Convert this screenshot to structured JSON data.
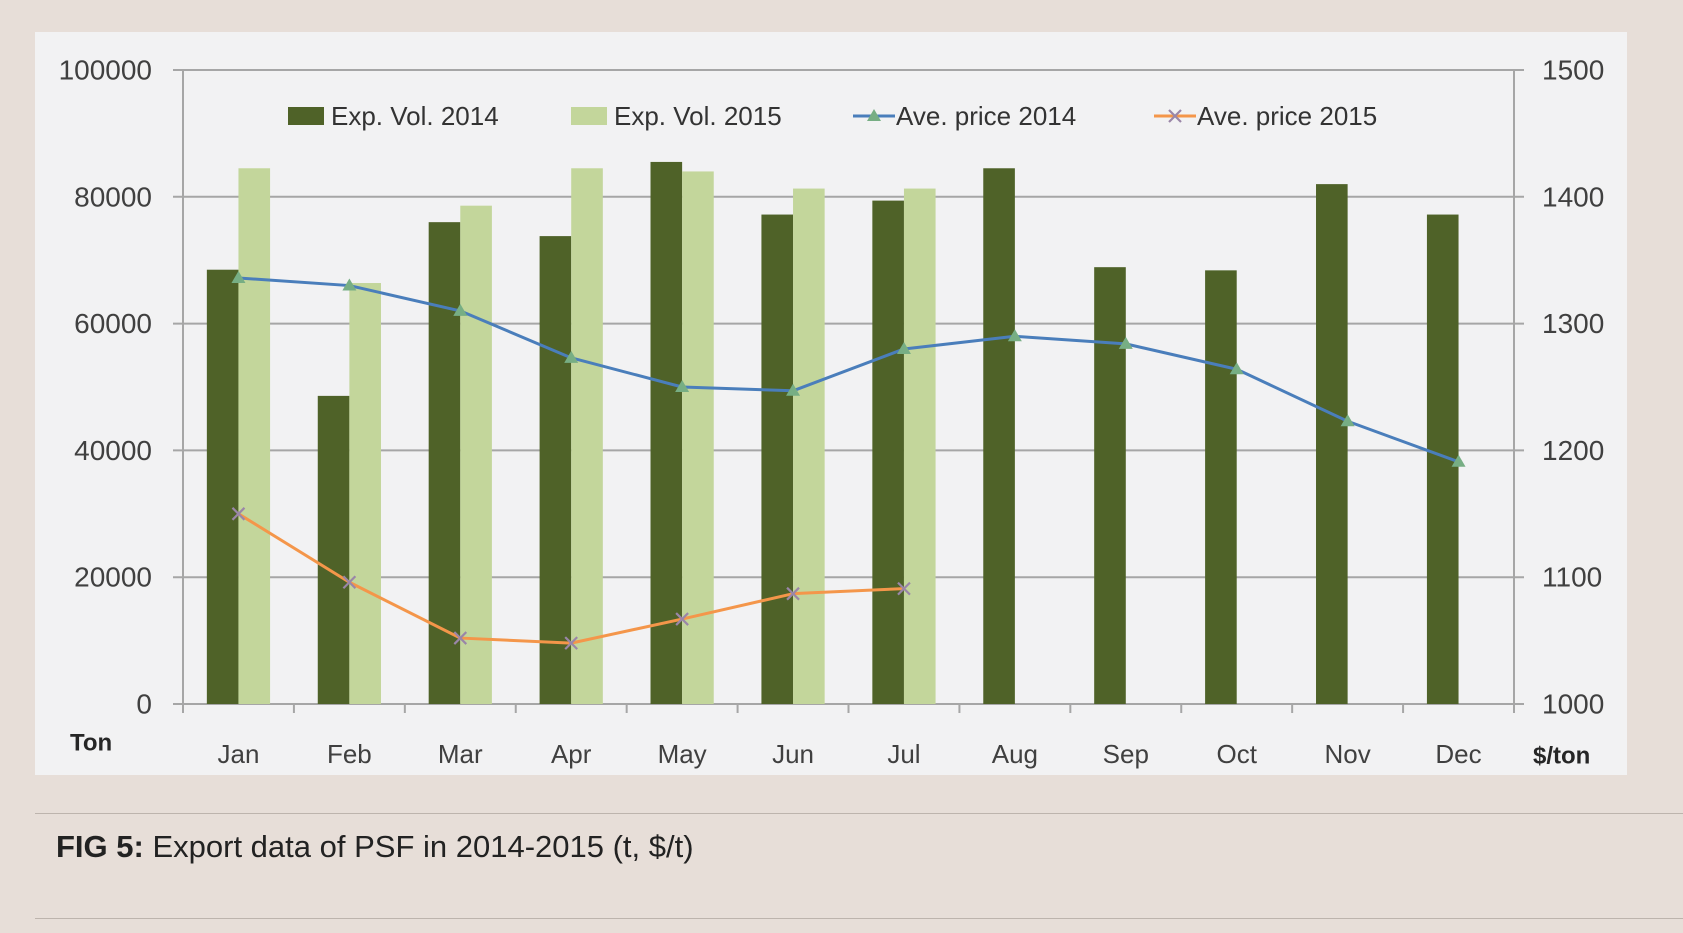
{
  "figure": {
    "caption_label": "FIG 5:",
    "caption_text": "Export data of PSF in 2014-2015 (t, $/t)"
  },
  "colors": {
    "page_background": "#e7ded8",
    "panel_background": "#f2f2f3",
    "gridline": "#a6a6a6"
  },
  "chart_data": {
    "type": "bar",
    "categories": [
      "Jan",
      "Feb",
      "Mar",
      "Apr",
      "May",
      "Jun",
      "Jul",
      "Aug",
      "Sep",
      "Oct",
      "Nov",
      "Dec"
    ],
    "ylabel": "Ton",
    "y2label": "$/ton",
    "ylim": [
      0,
      100000
    ],
    "y2lim": [
      1000,
      1500
    ],
    "yticks": [
      0,
      20000,
      40000,
      60000,
      80000,
      100000
    ],
    "y2ticks": [
      1000,
      1100,
      1200,
      1300,
      1400,
      1500
    ],
    "grid": true,
    "legend_position": "top",
    "series": [
      {
        "name": "Exp. Vol. 2014",
        "type": "bar",
        "axis": "left",
        "color": "#4f6228",
        "values": [
          68500,
          48600,
          76000,
          73800,
          85500,
          77200,
          79400,
          84500,
          68900,
          68400,
          82000,
          77200
        ]
      },
      {
        "name": "Exp. Vol. 2015",
        "type": "bar",
        "axis": "left",
        "color": "#c3d69b",
        "values": [
          84500,
          66400,
          78600,
          84500,
          84000,
          81300,
          81300,
          null,
          null,
          null,
          null,
          null
        ]
      },
      {
        "name": "Ave. price 2014",
        "type": "line",
        "axis": "right",
        "marker": "triangle",
        "color": "#4a7ebb",
        "marker_color": "#77ae84",
        "values": [
          1336,
          1330,
          1310,
          1273,
          1250,
          1247,
          1280,
          1290,
          1284,
          1264,
          1223,
          1191
        ]
      },
      {
        "name": "Ave. price 2015",
        "type": "line",
        "axis": "right",
        "marker": "x",
        "color": "#f4964a",
        "marker_color": "#9a86a8",
        "values": [
          1150,
          1096,
          1052,
          1048,
          1067,
          1087,
          1091,
          null,
          null,
          null,
          null,
          null
        ]
      }
    ]
  }
}
